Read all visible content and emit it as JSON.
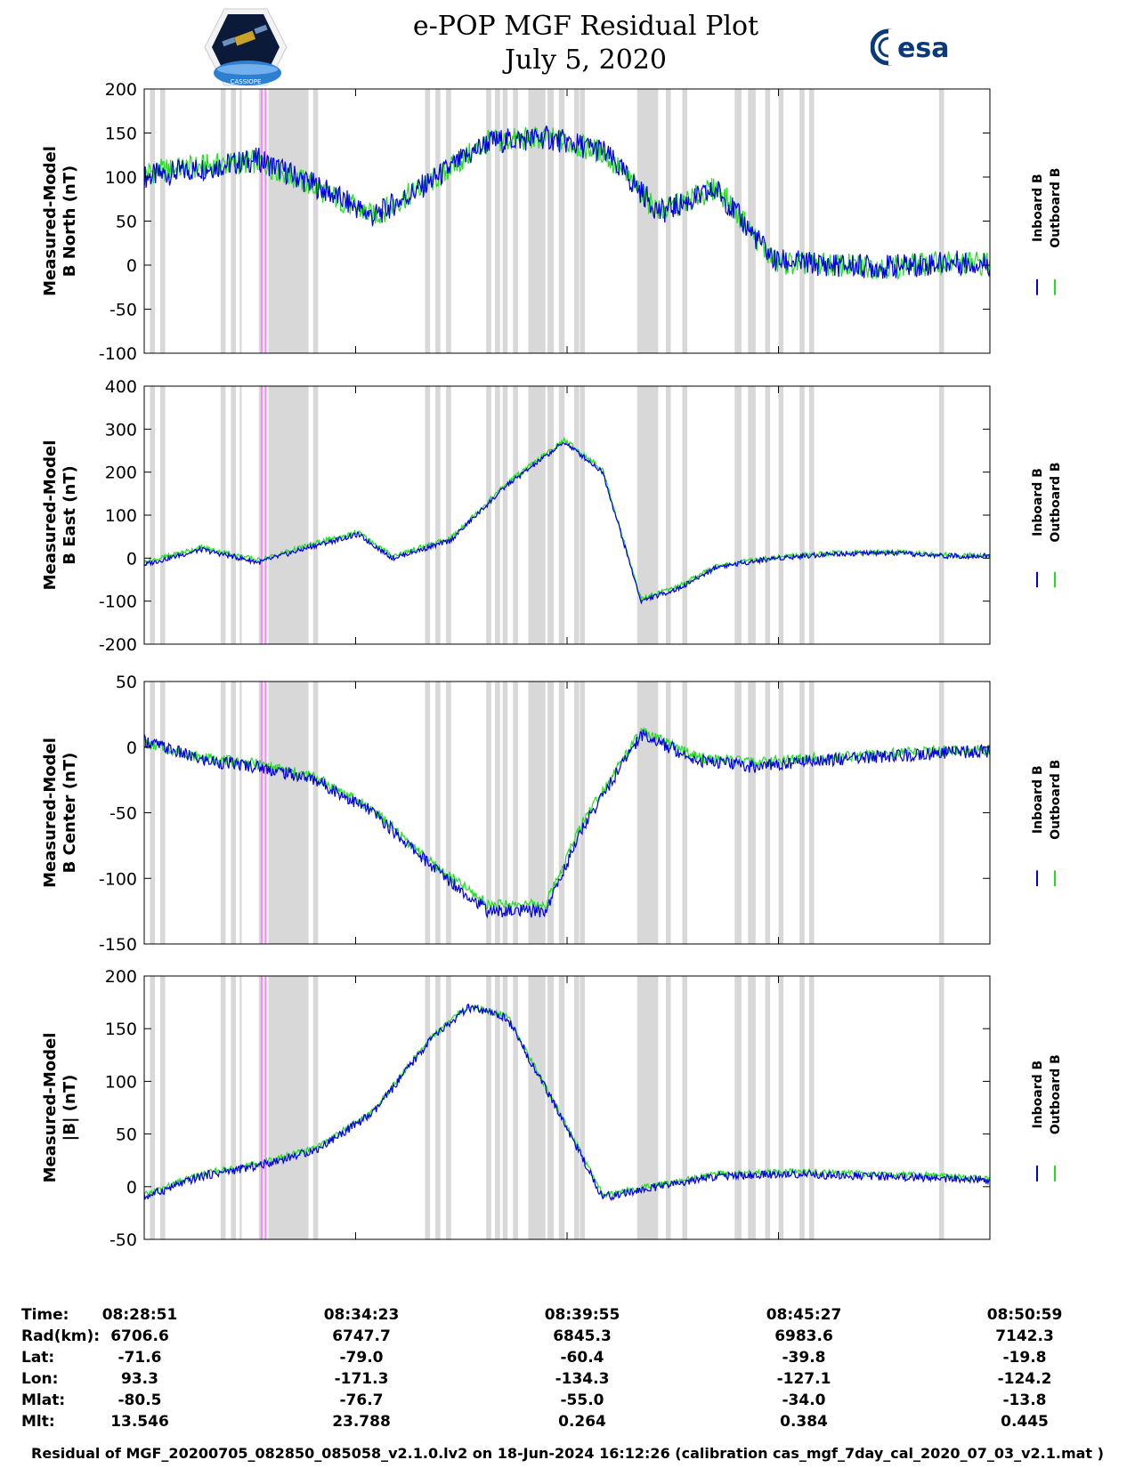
{
  "title": {
    "line1": "e-POP MGF Residual Plot",
    "line2": "July 5, 2020"
  },
  "logos": {
    "left": "CASSIOPE",
    "right": "esa"
  },
  "colors": {
    "inboard": "#0000dd",
    "outboard": "#22dd22",
    "gap_shade": "#d8d8d8",
    "marker": "#ff88ff"
  },
  "chart_data": [
    {
      "type": "line",
      "ylabel_line1": "Measured-Model",
      "ylabel_line2": "B North (nT)",
      "ylim": [
        -100,
        200
      ],
      "yticks": [
        "200",
        "150",
        "100",
        "50",
        "0",
        "-50",
        "-100"
      ],
      "legend": [
        "Inboard B",
        "Outboard B"
      ],
      "x_minutes": [
        0,
        1.5,
        3,
        4.5,
        6,
        7.5,
        9,
        10.5,
        12,
        13.5,
        15,
        16.5,
        18,
        19.5,
        21,
        22.1
      ],
      "series": [
        {
          "name": "Inboard B",
          "values": [
            100,
            110,
            120,
            90,
            55,
            95,
            140,
            145,
            130,
            60,
            85,
            5,
            0,
            -2,
            3,
            2
          ]
        },
        {
          "name": "Outboard B",
          "values": [
            105,
            112,
            118,
            88,
            55,
            95,
            140,
            145,
            128,
            60,
            88,
            3,
            0,
            -2,
            3,
            2
          ]
        }
      ]
    },
    {
      "type": "line",
      "ylabel_line1": "Measured-Model",
      "ylabel_line2": "B East (nT)",
      "ylim": [
        -200,
        400
      ],
      "yticks": [
        "400",
        "300",
        "200",
        "100",
        "0",
        "-100",
        "-200"
      ],
      "legend": [
        "Inboard B",
        "Outboard B"
      ],
      "x_minutes": [
        0,
        1.5,
        3,
        4.5,
        5.6,
        6.5,
        8,
        9.5,
        11,
        12,
        13,
        14,
        15,
        16.5,
        18,
        19.5,
        21,
        22.1
      ],
      "series": [
        {
          "name": "Inboard B",
          "values": [
            -15,
            20,
            -10,
            30,
            55,
            0,
            40,
            170,
            270,
            200,
            -100,
            -70,
            -20,
            0,
            10,
            12,
            5,
            5
          ]
        },
        {
          "name": "Outboard B",
          "values": [
            -10,
            25,
            -5,
            35,
            60,
            5,
            45,
            175,
            275,
            205,
            -95,
            -65,
            -18,
            2,
            12,
            14,
            7,
            6
          ]
        }
      ]
    },
    {
      "type": "line",
      "ylabel_line1": "Measured-Model",
      "ylabel_line2": "B Center (nT)",
      "ylim": [
        -150,
        50
      ],
      "yticks": [
        "50",
        "0",
        "-50",
        "-100",
        "-150"
      ],
      "legend": [
        "Inboard B",
        "Outboard B"
      ],
      "x_minutes": [
        0,
        1.5,
        3,
        4.5,
        6,
        7.5,
        9,
        10.5,
        11.5,
        13,
        14.5,
        16,
        17.5,
        19,
        20.5,
        22.1
      ],
      "series": [
        {
          "name": "Inboard B",
          "values": [
            5,
            -10,
            -15,
            -25,
            -50,
            -90,
            -125,
            -125,
            -60,
            10,
            -10,
            -15,
            -10,
            -8,
            -5,
            -3
          ]
        },
        {
          "name": "Outboard B",
          "values": [
            3,
            -8,
            -13,
            -23,
            -48,
            -88,
            -120,
            -120,
            -55,
            12,
            -8,
            -12,
            -8,
            -6,
            -3,
            -2
          ]
        }
      ]
    },
    {
      "type": "line",
      "ylabel_line1": "Measured-Model",
      "ylabel_line2": "|B| (nT)",
      "ylim": [
        -50,
        200
      ],
      "yticks": [
        "200",
        "150",
        "100",
        "50",
        "0",
        "-50"
      ],
      "legend": [
        "Inboard B",
        "Outboard B"
      ],
      "x_minutes": [
        0,
        1.5,
        3,
        4.5,
        6,
        7.5,
        8.5,
        9.5,
        11,
        12,
        13.5,
        15,
        17,
        19,
        21,
        22.1
      ],
      "series": [
        {
          "name": "Inboard B",
          "values": [
            -10,
            10,
            20,
            35,
            70,
            140,
            170,
            160,
            60,
            -10,
            0,
            10,
            12,
            10,
            8,
            5
          ]
        },
        {
          "name": "Outboard B",
          "values": [
            -8,
            12,
            22,
            37,
            72,
            142,
            172,
            162,
            62,
            -8,
            2,
            12,
            14,
            12,
            10,
            7
          ]
        }
      ]
    }
  ],
  "x_axis": {
    "xlim_minutes": [
      0,
      22.13
    ],
    "shaded_intervals_minutes": [
      [
        0.15,
        0.28
      ],
      [
        0.42,
        0.55
      ],
      [
        2.0,
        2.13
      ],
      [
        2.27,
        2.4
      ],
      [
        2.5,
        2.55
      ],
      [
        3.0,
        3.05
      ],
      [
        3.25,
        4.3
      ],
      [
        4.42,
        4.55
      ],
      [
        7.35,
        7.48
      ],
      [
        7.62,
        7.75
      ],
      [
        7.9,
        8.03
      ],
      [
        8.95,
        9.08
      ],
      [
        9.18,
        9.31
      ],
      [
        9.38,
        9.51
      ],
      [
        9.65,
        9.78
      ],
      [
        10.05,
        10.5
      ],
      [
        10.55,
        10.72
      ],
      [
        10.85,
        11.0
      ],
      [
        11.25,
        11.38
      ],
      [
        11.4,
        11.53
      ],
      [
        12.9,
        13.45
      ],
      [
        13.65,
        13.78
      ],
      [
        14.08,
        14.21
      ],
      [
        15.45,
        15.63
      ],
      [
        15.8,
        16.0
      ],
      [
        16.25,
        16.38
      ],
      [
        16.6,
        16.73
      ],
      [
        17.15,
        17.28
      ],
      [
        17.4,
        17.53
      ],
      [
        20.8,
        20.93
      ]
    ],
    "marker_intervals_minutes": [
      [
        3.05,
        3.1
      ],
      [
        3.15,
        3.2
      ]
    ]
  },
  "info_table": {
    "labels": [
      "Time:",
      "Rad(km):",
      "Lat:",
      "Lon:",
      "Mlat:",
      "Mlt:"
    ],
    "columns": [
      {
        "time": "08:28:51",
        "rad": "6706.6",
        "lat": "-71.6",
        "lon": "93.3",
        "mlat": "-80.5",
        "mlt": "13.546"
      },
      {
        "time": "08:34:23",
        "rad": "6747.7",
        "lat": "-79.0",
        "lon": "-171.3",
        "mlat": "-76.7",
        "mlt": "23.788"
      },
      {
        "time": "08:39:55",
        "rad": "6845.3",
        "lat": "-60.4",
        "lon": "-134.3",
        "mlat": "-55.0",
        "mlt": "0.264"
      },
      {
        "time": "08:45:27",
        "rad": "6983.6",
        "lat": "-39.8",
        "lon": "-127.1",
        "mlat": "-34.0",
        "mlt": "0.384"
      },
      {
        "time": "08:50:59",
        "rad": "7142.3",
        "lat": "-19.8",
        "lon": "-124.2",
        "mlat": "-13.8",
        "mlt": "0.445"
      }
    ]
  },
  "footer": "Residual of MGF_20200705_082850_085058_v2.1.0.lv2 on 18-Jun-2024 16:12:26 (calibration cas_mgf_7day_cal_2020_07_03_v2.1.mat )"
}
